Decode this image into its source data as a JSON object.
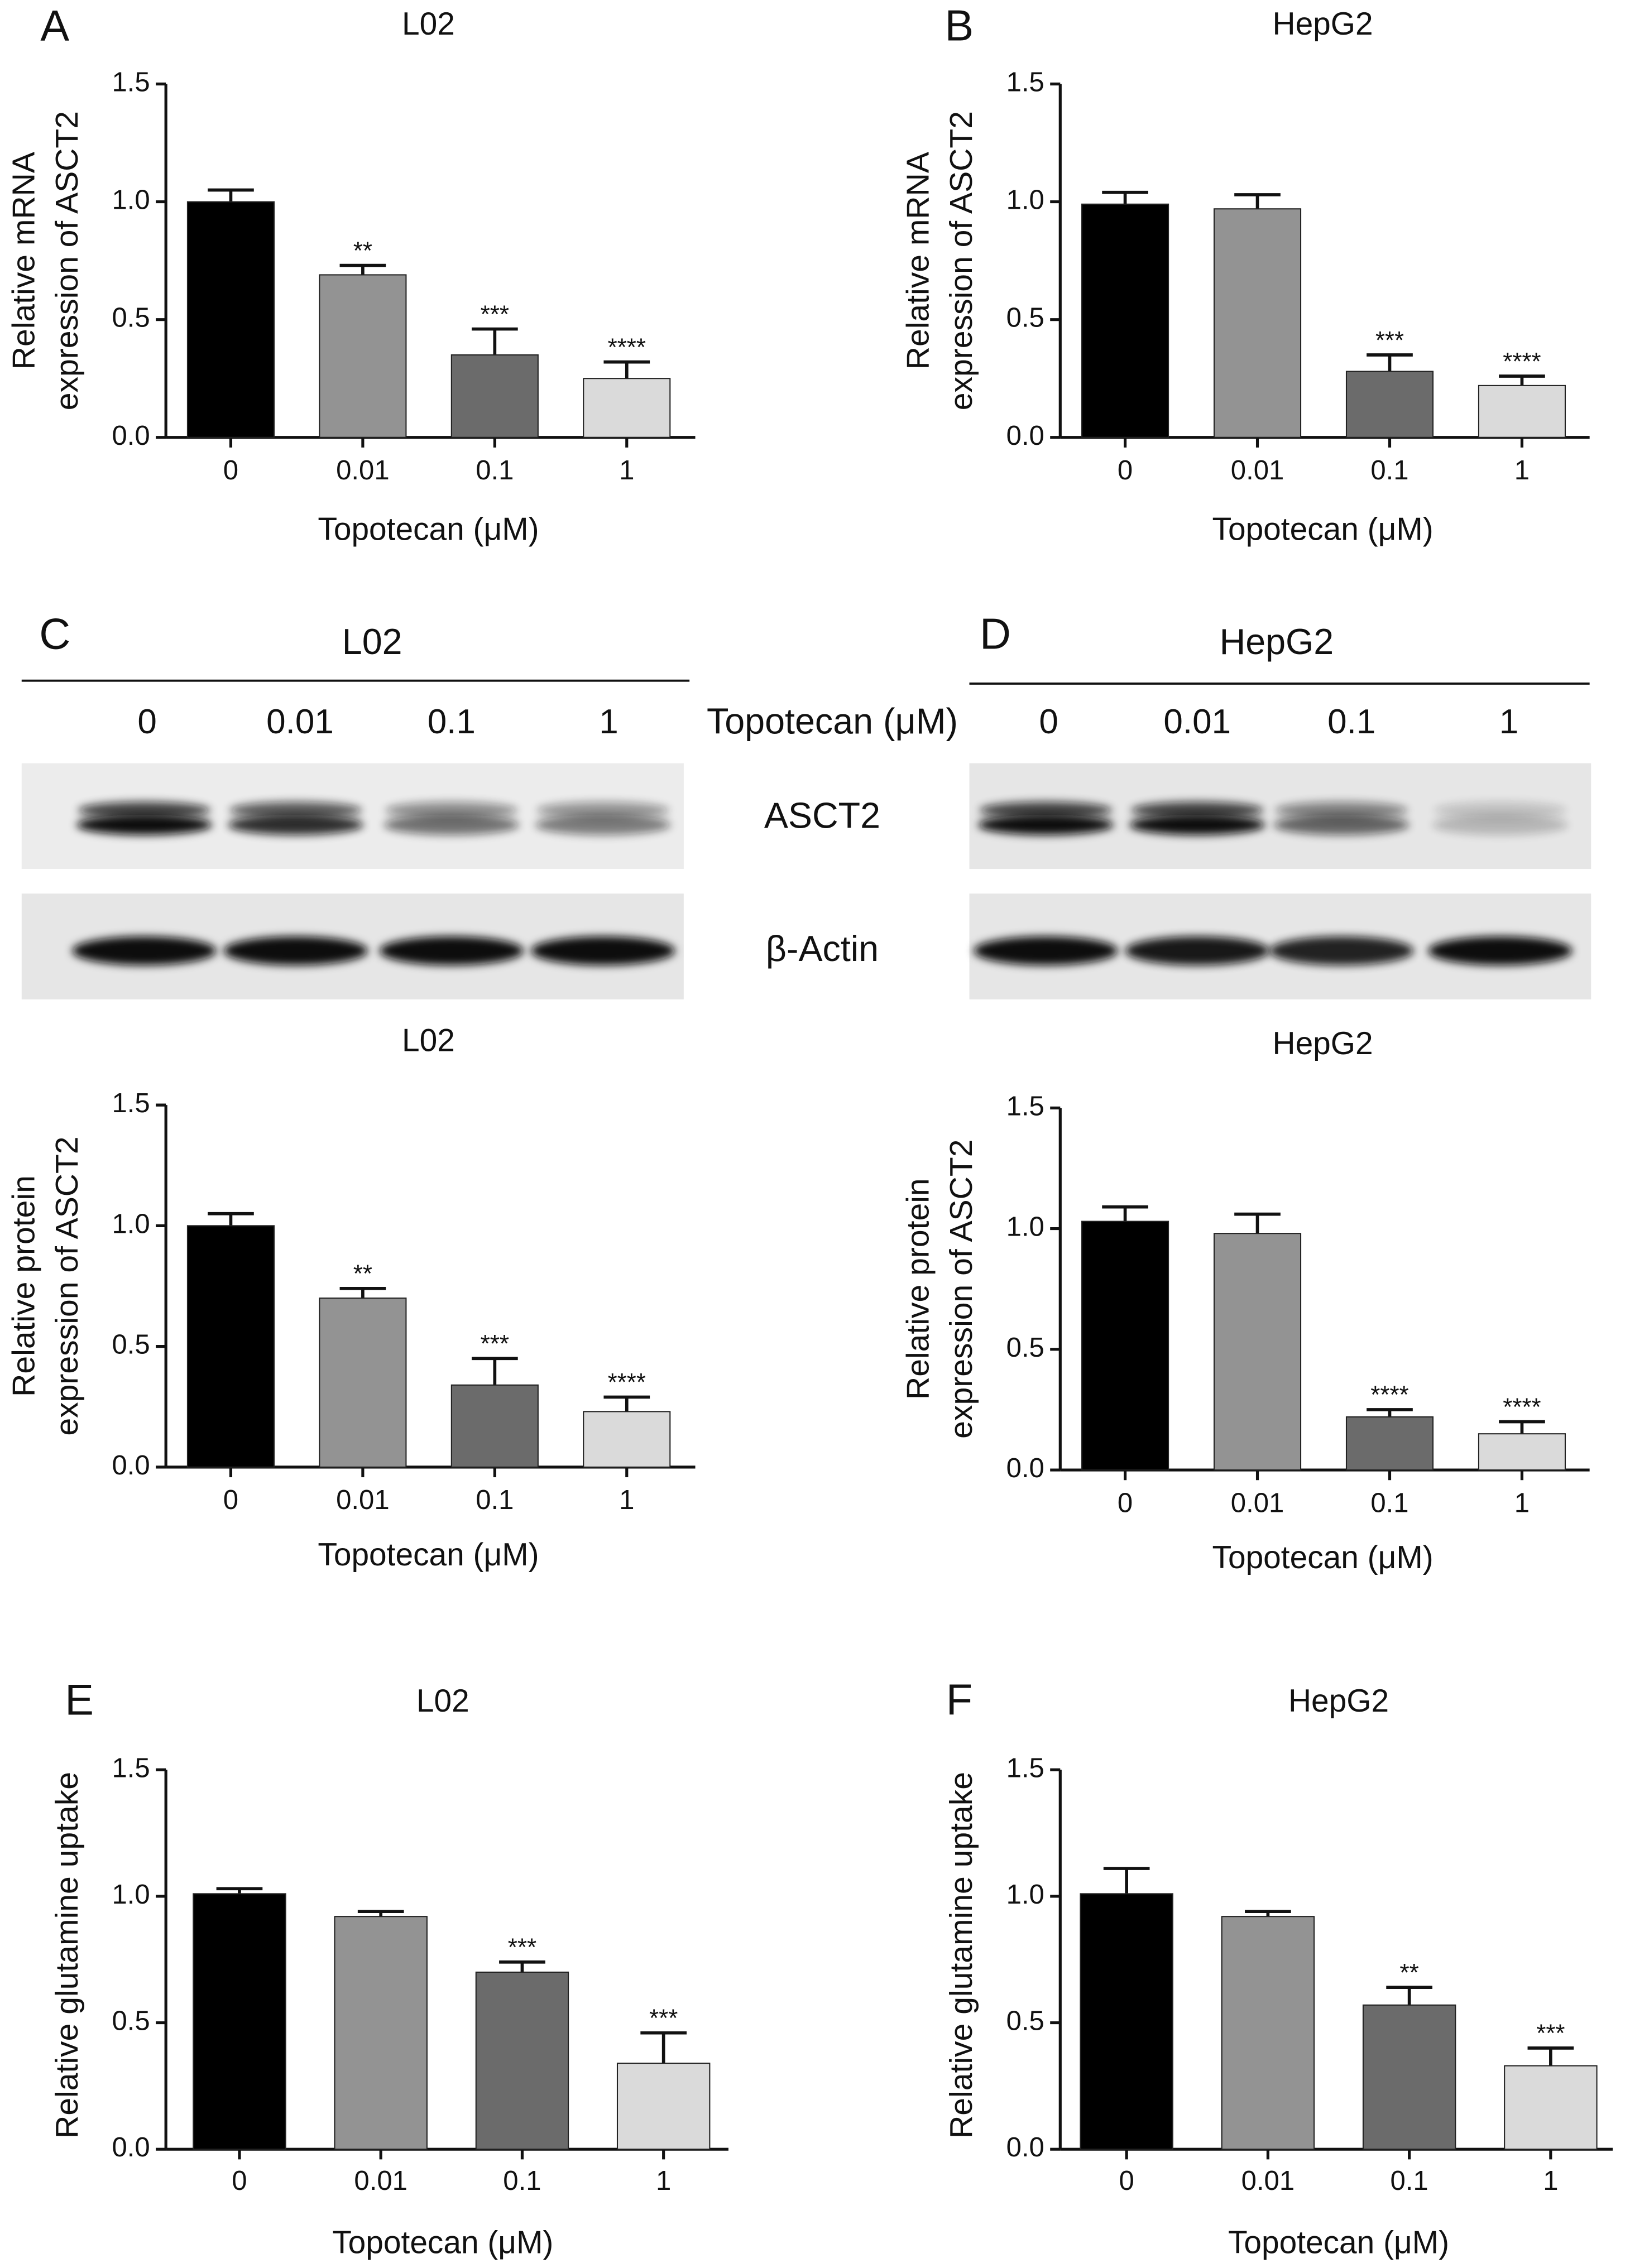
{
  "chart_data": [
    {
      "type": "bar",
      "panel": "A",
      "title": "L02",
      "ylabel": [
        "Relative mRNA",
        "expression of ASCT2"
      ],
      "xlabel": "Topotecan (μM)",
      "categories": [
        "0",
        "0.01",
        "0.1",
        "1"
      ],
      "values": [
        1.0,
        0.69,
        0.35,
        0.25
      ],
      "errors": [
        0.05,
        0.04,
        0.11,
        0.07
      ],
      "annotations": [
        null,
        "**",
        "***",
        "****"
      ],
      "colors": [
        "#000000",
        "#939393",
        "#6b6b6b",
        "#dadada"
      ],
      "ylim": [
        0,
        1.5
      ],
      "yticks": [
        {
          "value": 0,
          "label": "0.0"
        },
        0.5,
        {
          "value": 1,
          "label": "1.0"
        },
        1.5
      ]
    },
    {
      "type": "bar",
      "panel": "B",
      "title": "HepG2",
      "ylabel": [
        "Relative mRNA",
        "expression of ASCT2"
      ],
      "xlabel": "Topotecan (μM)",
      "categories": [
        "0",
        "0.01",
        "0.1",
        "1"
      ],
      "values": [
        0.99,
        0.97,
        0.28,
        0.22
      ],
      "errors": [
        0.05,
        0.06,
        0.07,
        0.04
      ],
      "annotations": [
        null,
        null,
        "***",
        "****"
      ],
      "colors": [
        "#000000",
        "#939393",
        "#6b6b6b",
        "#dadada"
      ],
      "ylim": [
        0,
        1.5
      ],
      "yticks": [
        {
          "value": 0,
          "label": "0.0"
        },
        0.5,
        {
          "value": 1,
          "label": "1.0"
        },
        1.5
      ]
    },
    {
      "type": "bar",
      "panel": "C",
      "title": "L02",
      "ylabel": [
        "Relative protein",
        "expression of ASCT2"
      ],
      "xlabel": "Topotecan (μM)",
      "categories": [
        "0",
        "0.01",
        "0.1",
        "1"
      ],
      "values": [
        1.0,
        0.7,
        0.34,
        0.23
      ],
      "errors": [
        0.05,
        0.04,
        0.11,
        0.06
      ],
      "annotations": [
        null,
        "**",
        "***",
        "****"
      ],
      "colors": [
        "#000000",
        "#939393",
        "#6b6b6b",
        "#dadada"
      ],
      "ylim": [
        0,
        1.5
      ],
      "yticks": [
        {
          "value": 0,
          "label": "0.0"
        },
        0.5,
        {
          "value": 1,
          "label": "1.0"
        },
        1.5
      ]
    },
    {
      "type": "bar",
      "panel": "D",
      "title": "HepG2",
      "ylabel": [
        "Relative protein",
        "expression of ASCT2"
      ],
      "xlabel": "Topotecan (μM)",
      "categories": [
        "0",
        "0.01",
        "0.1",
        "1"
      ],
      "values": [
        1.03,
        0.98,
        0.22,
        0.15
      ],
      "errors": [
        0.06,
        0.08,
        0.03,
        0.05
      ],
      "annotations": [
        null,
        null,
        "****",
        "****"
      ],
      "colors": [
        "#000000",
        "#939393",
        "#6b6b6b",
        "#dadada"
      ],
      "ylim": [
        0,
        1.5
      ],
      "yticks": [
        {
          "value": 0,
          "label": "0.0"
        },
        0.5,
        {
          "value": 1,
          "label": "1.0"
        },
        1.5
      ]
    },
    {
      "type": "bar",
      "panel": "E",
      "title": "L02",
      "ylabel": [
        "Relative glutamine uptake"
      ],
      "xlabel": "Topotecan (μM)",
      "categories": [
        "0",
        "0.01",
        "0.1",
        "1"
      ],
      "values": [
        1.01,
        0.92,
        0.7,
        0.34
      ],
      "errors": [
        0.02,
        0.02,
        0.04,
        0.12
      ],
      "annotations": [
        null,
        null,
        "***",
        "***"
      ],
      "colors": [
        "#000000",
        "#939393",
        "#6b6b6b",
        "#dadada"
      ],
      "ylim": [
        0,
        1.5
      ],
      "yticks": [
        {
          "value": 0,
          "label": "0.0"
        },
        0.5,
        {
          "value": 1,
          "label": "1.0"
        },
        1.5
      ]
    },
    {
      "type": "bar",
      "panel": "F",
      "title": "HepG2",
      "ylabel": [
        "Relative glutamine uptake"
      ],
      "xlabel": "Topotecan (μM)",
      "categories": [
        "0",
        "0.01",
        "0.1",
        "1"
      ],
      "values": [
        1.01,
        0.92,
        0.57,
        0.33
      ],
      "errors": [
        0.1,
        0.02,
        0.07,
        0.07
      ],
      "annotations": [
        null,
        null,
        "**",
        "***"
      ],
      "colors": [
        "#000000",
        "#939393",
        "#6b6b6b",
        "#dadada"
      ],
      "ylim": [
        0,
        1.5
      ],
      "yticks": [
        {
          "value": 0,
          "label": "0.0"
        },
        0.5,
        {
          "value": 1,
          "label": "1.0"
        },
        1.5
      ]
    }
  ],
  "blots": {
    "treatment_label": "Topotecan (μM)",
    "rows": [
      "ASCT2",
      "β-Actin"
    ],
    "panels": [
      {
        "panel": "C",
        "title": "L02",
        "lanes": [
          "0",
          "0.01",
          "0.1",
          "1"
        ]
      },
      {
        "panel": "D",
        "title": "HepG2",
        "lanes": [
          "0",
          "0.01",
          "0.1",
          "1"
        ]
      }
    ]
  }
}
